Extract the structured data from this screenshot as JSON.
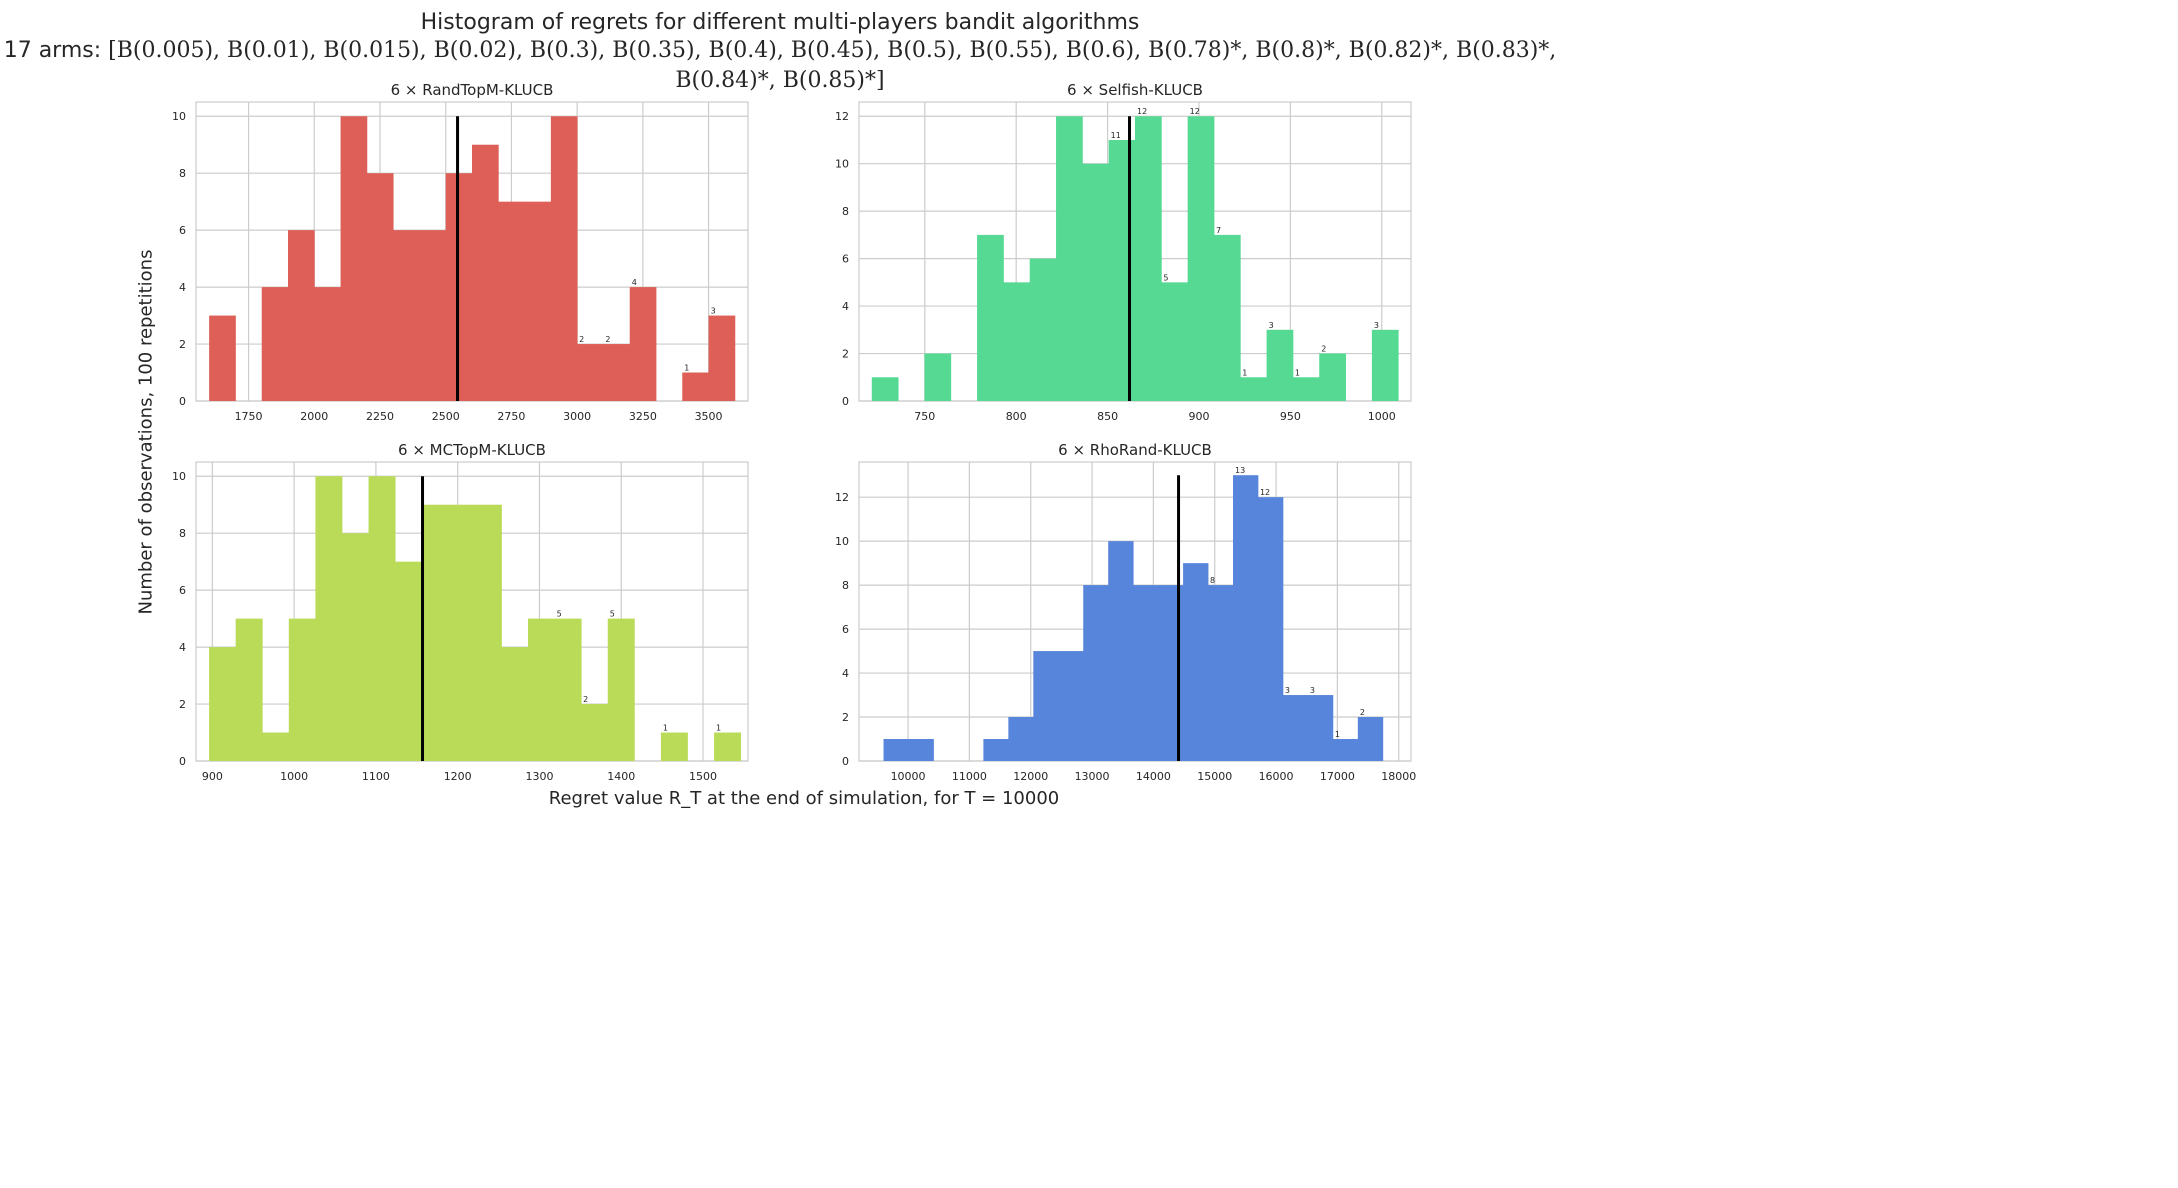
{
  "figure": {
    "title_line1": "Histogram of regrets for different multi-players bandit algorithms",
    "title_line2_prefix": "17 arms: ",
    "title_line2_math": "[B(0.005), B(0.01), B(0.015), B(0.02), B(0.3), B(0.35), B(0.4), B(0.45), B(0.5), B(0.55), B(0.6), B(0.78)*, B(0.8)*, B(0.82)*, B(0.83)*,",
    "title_line3_math": "B(0.84)*, B(0.85)*]",
    "ylabel": "Number of observations, 100 repetitions",
    "xlabel": "Regret value R_T at the end of simulation, for T = 10000"
  },
  "chart_data": [
    {
      "type": "bar",
      "title": "6 × RandTopM-KLUCB",
      "color": "#dd5f57",
      "xlim": [
        1550,
        3650
      ],
      "ylim": [
        0,
        10.5
      ],
      "xticks": [
        1750,
        2000,
        2250,
        2500,
        2750,
        3000,
        3250,
        3500
      ],
      "yticks": [
        0,
        2,
        4,
        6,
        8,
        10
      ],
      "mean": 2545,
      "bins": [
        1600,
        1700,
        1800,
        1900,
        2000,
        2100,
        2200,
        2300,
        2400,
        2500,
        2600,
        2700,
        2800,
        2900,
        3000,
        3100,
        3200,
        3300,
        3400,
        3500,
        3600
      ],
      "bin_edges": [
        1600,
        1700,
        1800,
        1900,
        2000,
        2100,
        2200,
        2300,
        2400,
        2500,
        2600,
        2700,
        2800,
        2900,
        3000,
        3100,
        3200,
        3300,
        3400,
        3500,
        3600
      ],
      "counts": [
        3,
        0,
        4,
        6,
        4,
        10,
        8,
        6,
        6,
        8,
        9,
        7,
        7,
        10,
        2,
        2,
        4,
        0,
        1,
        3
      ],
      "annotations": [
        {
          "bin": 14,
          "label": "2"
        },
        {
          "bin": 15,
          "label": "2"
        },
        {
          "bin": 16,
          "label": "4"
        },
        {
          "bin": 18,
          "label": "1"
        },
        {
          "bin": 19,
          "label": "3"
        }
      ]
    },
    {
      "type": "bar",
      "title": "6 × Selfish-KLUCB",
      "color": "#55d993",
      "xlim": [
        714,
        1016
      ],
      "ylim": [
        0,
        12.6
      ],
      "xticks": [
        750,
        800,
        850,
        900,
        950,
        1000
      ],
      "yticks": [
        0,
        2,
        4,
        6,
        8,
        10,
        12
      ],
      "mean": 862,
      "bin_edges": [
        721,
        735.4,
        749.8,
        764.2,
        778.6,
        793,
        807.4,
        821.8,
        836.2,
        850.6,
        865,
        879.4,
        893.8,
        908.2,
        922.6,
        937,
        951.4,
        965.8,
        980.2,
        994.6,
        1009
      ],
      "counts": [
        1,
        0,
        2,
        0,
        7,
        5,
        6,
        12,
        10,
        11,
        12,
        5,
        12,
        7,
        1,
        3,
        1,
        2,
        0,
        3
      ],
      "annotations": [
        {
          "bin": 9,
          "label": "11"
        },
        {
          "bin": 10,
          "label": "12"
        },
        {
          "bin": 11,
          "label": "5"
        },
        {
          "bin": 12,
          "label": "12"
        },
        {
          "bin": 13,
          "label": "7"
        },
        {
          "bin": 14,
          "label": "1"
        },
        {
          "bin": 15,
          "label": "3"
        },
        {
          "bin": 16,
          "label": "1"
        },
        {
          "bin": 17,
          "label": "2"
        },
        {
          "bin": 19,
          "label": "3"
        }
      ]
    },
    {
      "type": "bar",
      "title": "6 × MCTopM-KLUCB",
      "color": "#b9db57",
      "xlim": [
        880,
        1555
      ],
      "ylim": [
        0,
        10.5
      ],
      "xticks": [
        900,
        1000,
        1100,
        1200,
        1300,
        1400,
        1500
      ],
      "yticks": [
        0,
        2,
        4,
        6,
        8,
        10
      ],
      "mean": 1157,
      "bin_edges": [
        896,
        928.5,
        961,
        993.5,
        1026,
        1058.5,
        1091,
        1123.5,
        1156,
        1188.5,
        1221,
        1253.5,
        1286,
        1318.5,
        1351,
        1383.5,
        1416,
        1448.5,
        1481,
        1513.5,
        1546
      ],
      "counts": [
        4,
        5,
        1,
        5,
        10,
        8,
        10,
        7,
        9,
        9,
        9,
        4,
        5,
        5,
        2,
        5,
        0,
        1,
        0,
        1
      ],
      "annotations": [
        {
          "bin": 13,
          "label": "5"
        },
        {
          "bin": 14,
          "label": "2"
        },
        {
          "bin": 15,
          "label": "5"
        },
        {
          "bin": 17,
          "label": "1"
        },
        {
          "bin": 19,
          "label": "1"
        }
      ]
    },
    {
      "type": "bar",
      "title": "6 × RhoRand-KLUCB",
      "color": "#5785db",
      "xlim": [
        9200,
        18200
      ],
      "ylim": [
        0,
        13.6
      ],
      "xticks": [
        10000,
        11000,
        12000,
        13000,
        14000,
        15000,
        16000,
        17000,
        18000
      ],
      "yticks": [
        0,
        2,
        4,
        6,
        8,
        10,
        12
      ],
      "mean": 14410,
      "bin_edges": [
        9600,
        10007,
        10414,
        10821,
        11228,
        11635,
        12042,
        12449,
        12856,
        13263,
        13670,
        14077,
        14484,
        14891,
        15298,
        15705,
        16112,
        16519,
        16926,
        17333,
        17740
      ],
      "counts": [
        1,
        1,
        0,
        0,
        1,
        2,
        5,
        5,
        8,
        10,
        8,
        8,
        9,
        8,
        13,
        12,
        3,
        3,
        1,
        2
      ],
      "annotations": [
        {
          "bin": 13,
          "label": "8"
        },
        {
          "bin": 14,
          "label": "13"
        },
        {
          "bin": 15,
          "label": "12"
        },
        {
          "bin": 16,
          "label": "3"
        },
        {
          "bin": 17,
          "label": "3"
        },
        {
          "bin": 18,
          "label": "1"
        },
        {
          "bin": 19,
          "label": "2"
        }
      ]
    }
  ]
}
